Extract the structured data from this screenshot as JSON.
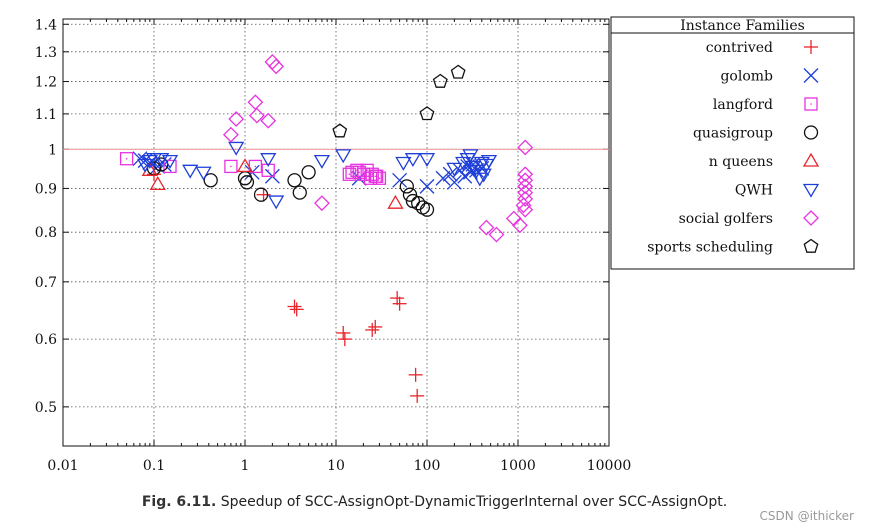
{
  "chart_data": {
    "type": "scatter",
    "title": "",
    "xlabel": "",
    "ylabel": "",
    "x_scale": "log",
    "y_scale": "log",
    "xlim": [
      0.01,
      10000
    ],
    "ylim": [
      0.45,
      1.42
    ],
    "x_ticks": [
      0.01,
      0.1,
      1,
      10,
      100,
      1000,
      10000
    ],
    "x_tick_labels": [
      "0.01",
      "0.1",
      "1",
      "10",
      "100",
      "1000",
      "10000"
    ],
    "y_ticks": [
      0.5,
      0.6,
      0.7,
      0.8,
      0.9,
      1,
      1.1,
      1.2,
      1.3,
      1.4
    ],
    "y_tick_labels": [
      "0.5",
      "0.6",
      "0.7",
      "0.8",
      "0.9",
      "1",
      "1.1",
      "1.2",
      "1.3",
      "1.4"
    ],
    "grid": true,
    "reference_line_y": 1,
    "legend_title": "Instance Families",
    "legend_position": "top-right",
    "series": [
      {
        "name": "contrived",
        "marker": "plus",
        "color": "#e8252b",
        "points": [
          [
            0.1,
            0.935
          ],
          [
            1.6,
            0.885
          ],
          [
            3.5,
            0.655
          ],
          [
            3.7,
            0.65
          ],
          [
            12,
            0.61
          ],
          [
            12.5,
            0.6
          ],
          [
            25,
            0.615
          ],
          [
            27,
            0.62
          ],
          [
            47,
            0.67
          ],
          [
            50,
            0.66
          ],
          [
            75,
            0.545
          ],
          [
            78,
            0.515
          ]
        ]
      },
      {
        "name": "golomb",
        "marker": "x",
        "color": "#1f3fd9",
        "points": [
          [
            0.07,
            0.975
          ],
          [
            0.08,
            0.97
          ],
          [
            0.09,
            0.965
          ],
          [
            0.11,
            0.955
          ],
          [
            0.13,
            0.96
          ],
          [
            1.2,
            0.94
          ],
          [
            2,
            0.93
          ],
          [
            18,
            0.925
          ],
          [
            50,
            0.92
          ],
          [
            100,
            0.905
          ],
          [
            150,
            0.925
          ],
          [
            180,
            0.935
          ],
          [
            200,
            0.915
          ],
          [
            230,
            0.945
          ],
          [
            260,
            0.93
          ],
          [
            280,
            0.955
          ],
          [
            300,
            0.94
          ],
          [
            320,
            0.96
          ],
          [
            350,
            0.945
          ],
          [
            400,
            0.95
          ]
        ]
      },
      {
        "name": "langford",
        "marker": "square",
        "color": "#e832e0",
        "points": [
          [
            0.05,
            0.975
          ],
          [
            0.15,
            0.955
          ],
          [
            0.7,
            0.955
          ],
          [
            1.3,
            0.955
          ],
          [
            1.8,
            0.945
          ],
          [
            14,
            0.935
          ],
          [
            15,
            0.94
          ],
          [
            17,
            0.945
          ],
          [
            18,
            0.94
          ],
          [
            20,
            0.935
          ],
          [
            22,
            0.945
          ],
          [
            24,
            0.925
          ],
          [
            25,
            0.935
          ],
          [
            27,
            0.93
          ],
          [
            28,
            0.93
          ],
          [
            30,
            0.925
          ]
        ]
      },
      {
        "name": "quasigroup",
        "marker": "circle",
        "color": "#111111",
        "points": [
          [
            0.1,
            0.95
          ],
          [
            0.12,
            0.96
          ],
          [
            0.42,
            0.92
          ],
          [
            1.0,
            0.925
          ],
          [
            1.05,
            0.915
          ],
          [
            1.5,
            0.885
          ],
          [
            3.5,
            0.92
          ],
          [
            4,
            0.89
          ],
          [
            5,
            0.94
          ],
          [
            60,
            0.905
          ],
          [
            65,
            0.885
          ],
          [
            70,
            0.87
          ],
          [
            80,
            0.865
          ],
          [
            90,
            0.855
          ],
          [
            100,
            0.85
          ]
        ]
      },
      {
        "name": "n queens",
        "marker": "triangle-up",
        "color": "#e8252b",
        "points": [
          [
            0.09,
            0.945
          ],
          [
            0.11,
            0.91
          ],
          [
            1.0,
            0.955
          ],
          [
            45,
            0.865
          ]
        ]
      },
      {
        "name": "QWH",
        "marker": "triangle-down",
        "color": "#1f3fd9",
        "points": [
          [
            0.08,
            0.96
          ],
          [
            0.09,
            0.97
          ],
          [
            0.1,
            0.975
          ],
          [
            0.12,
            0.975
          ],
          [
            0.15,
            0.97
          ],
          [
            0.25,
            0.945
          ],
          [
            0.35,
            0.94
          ],
          [
            0.8,
            1.005
          ],
          [
            1.8,
            0.975
          ],
          [
            2.2,
            0.87
          ],
          [
            7,
            0.97
          ],
          [
            12,
            0.985
          ],
          [
            55,
            0.965
          ],
          [
            70,
            0.975
          ],
          [
            100,
            0.975
          ],
          [
            200,
            0.95
          ],
          [
            250,
            0.965
          ],
          [
            280,
            0.975
          ],
          [
            300,
            0.985
          ],
          [
            320,
            0.955
          ],
          [
            350,
            0.945
          ],
          [
            380,
            0.925
          ],
          [
            400,
            0.965
          ],
          [
            420,
            0.935
          ],
          [
            450,
            0.96
          ],
          [
            480,
            0.97
          ]
        ]
      },
      {
        "name": "social golfers",
        "marker": "diamond",
        "color": "#e832e0",
        "points": [
          [
            0.7,
            1.04
          ],
          [
            0.8,
            1.085
          ],
          [
            1.3,
            1.135
          ],
          [
            1.35,
            1.095
          ],
          [
            1.8,
            1.08
          ],
          [
            2.0,
            1.265
          ],
          [
            2.2,
            1.25
          ],
          [
            7,
            0.865
          ],
          [
            450,
            0.81
          ],
          [
            580,
            0.795
          ],
          [
            900,
            0.83
          ],
          [
            1050,
            0.815
          ],
          [
            1150,
            0.86
          ],
          [
            1200,
            0.85
          ],
          [
            1200,
            0.875
          ],
          [
            1200,
            0.89
          ],
          [
            1200,
            0.905
          ],
          [
            1200,
            0.92
          ],
          [
            1200,
            0.935
          ],
          [
            1200,
            1.005
          ]
        ]
      },
      {
        "name": "sports scheduling",
        "marker": "pentagon",
        "color": "#111111",
        "points": [
          [
            11,
            1.05
          ],
          [
            100,
            1.1
          ],
          [
            140,
            1.2
          ],
          [
            220,
            1.23
          ]
        ]
      }
    ]
  },
  "caption": {
    "label": "Fig. 6.11.",
    "text": "Speedup of SCC-AssignOpt-DynamicTriggerInternal over SCC-AssignOpt."
  },
  "watermark": "CSDN @ithicker"
}
